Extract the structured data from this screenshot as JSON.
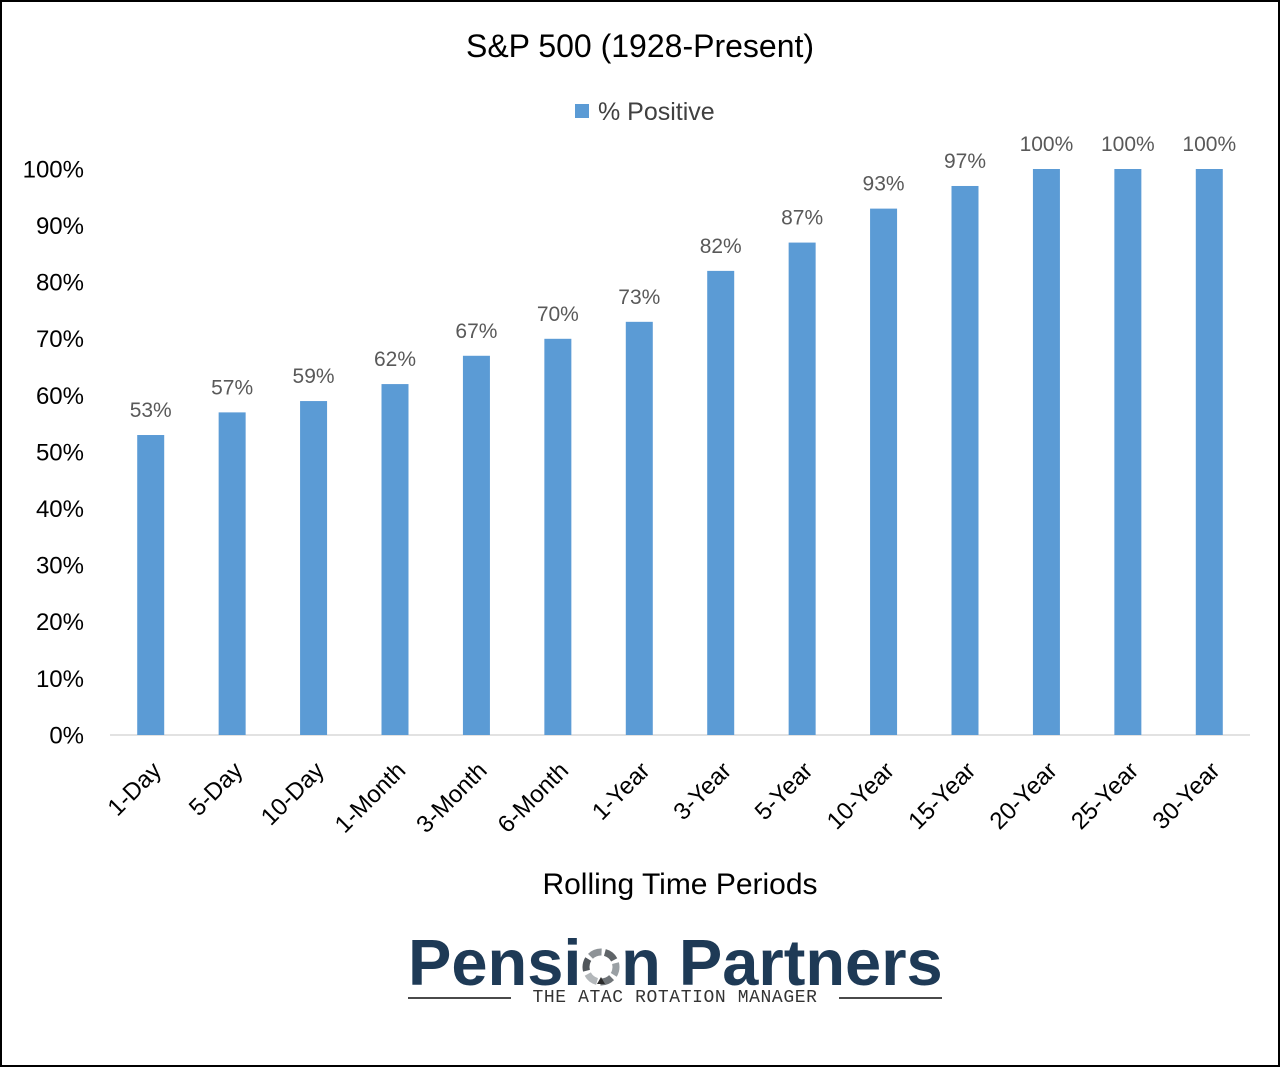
{
  "chart_data": {
    "type": "bar",
    "title": "S&P 500 (1928-Present)",
    "xlabel": "Rolling Time Periods",
    "categories": [
      "1-Day",
      "5-Day",
      "10-Day",
      "1-Month",
      "3-Month",
      "6-Month",
      "1-Year",
      "3-Year",
      "5-Year",
      "10-Year",
      "15-Year",
      "20-Year",
      "25-Year",
      "30-Year"
    ],
    "series": [
      {
        "name": "% Positive",
        "values": [
          53,
          57,
          59,
          62,
          67,
          70,
          73,
          82,
          87,
          93,
          97,
          100,
          100,
          100
        ],
        "color": "#5B9BD5"
      }
    ],
    "data_labels": [
      "53%",
      "57%",
      "59%",
      "62%",
      "67%",
      "70%",
      "73%",
      "82%",
      "87%",
      "93%",
      "97%",
      "100%",
      "100%",
      "100%"
    ],
    "ylim": [
      0,
      100
    ],
    "yticks": [
      0,
      10,
      20,
      30,
      40,
      50,
      60,
      70,
      80,
      90,
      100
    ],
    "ytick_labels": [
      "0%",
      "10%",
      "20%",
      "30%",
      "40%",
      "50%",
      "60%",
      "70%",
      "80%",
      "90%",
      "100%"
    ],
    "grid": false,
    "legend_position": "top"
  },
  "logo": {
    "name": "Pension Partners",
    "tagline": "THE ATAC ROTATION MANAGER",
    "color": "#1e3a56"
  }
}
